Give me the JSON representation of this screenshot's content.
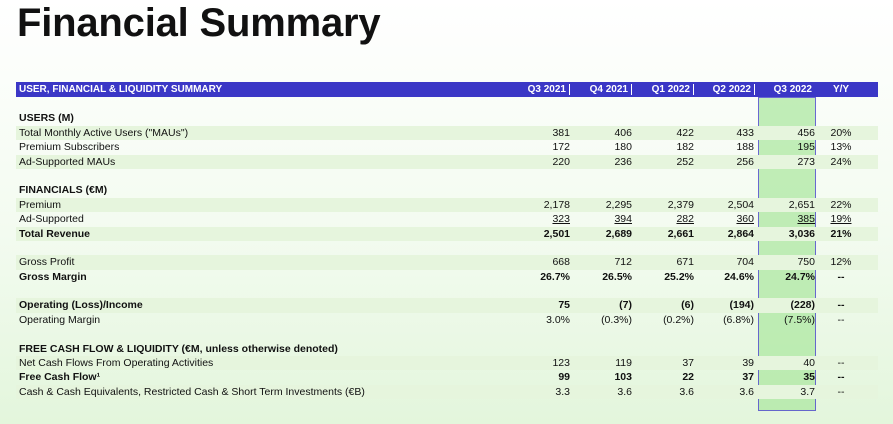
{
  "title": "Financial Summary",
  "table": {
    "header_label": "USER, FINANCIAL & LIQUIDITY SUMMARY",
    "columns": [
      "Q3 2021",
      "Q4 2021",
      "Q1 2022",
      "Q2 2022",
      "Q3 2022",
      "Y/Y"
    ]
  },
  "rows": [
    {
      "label": "USERS (M)"
    },
    {
      "label": "Total Monthly Active Users (\"MAUs\")",
      "values": [
        "381",
        "406",
        "422",
        "433",
        "456",
        "20%"
      ]
    },
    {
      "label": "Premium Subscribers",
      "values": [
        "172",
        "180",
        "182",
        "188",
        "195",
        "13%"
      ]
    },
    {
      "label": "Ad-Supported MAUs",
      "values": [
        "220",
        "236",
        "252",
        "256",
        "273",
        "24%"
      ]
    },
    {
      "label": "FINANCIALS (€M)"
    },
    {
      "label": "Premium",
      "values": [
        "2,178",
        "2,295",
        "2,379",
        "2,504",
        "2,651",
        "22%"
      ]
    },
    {
      "label": "Ad-Supported",
      "values": [
        "323",
        "394",
        "282",
        "360",
        "385",
        "19%"
      ]
    },
    {
      "label": "Total Revenue",
      "values": [
        "2,501",
        "2,689",
        "2,661",
        "2,864",
        "3,036",
        "21%"
      ]
    },
    {
      "label": "Gross Profit",
      "values": [
        "668",
        "712",
        "671",
        "704",
        "750",
        "12%"
      ]
    },
    {
      "label": "Gross Margin",
      "values": [
        "26.7%",
        "26.5%",
        "25.2%",
        "24.6%",
        "24.7%",
        "--"
      ]
    },
    {
      "label": "Operating (Loss)/Income",
      "values": [
        "75",
        "(7)",
        "(6)",
        "(194)",
        "(228)",
        "--"
      ]
    },
    {
      "label": "Operating Margin",
      "values": [
        "3.0%",
        "(0.3%)",
        "(0.2%)",
        "(6.8%)",
        "(7.5%)",
        "--"
      ]
    },
    {
      "label": "FREE CASH FLOW & LIQUIDITY (€M, unless otherwise denoted)"
    },
    {
      "label": "Net Cash Flows From Operating Activities",
      "values": [
        "123",
        "119",
        "37",
        "39",
        "40",
        "--"
      ]
    },
    {
      "label": "Free Cash Flow¹",
      "values": [
        "99",
        "103",
        "22",
        "37",
        "35",
        "--"
      ]
    },
    {
      "label": "Cash & Cash Equivalents, Restricted Cash & Short Term Investments (€B)",
      "values": [
        "3.3",
        "3.6",
        "3.6",
        "3.6",
        "3.7",
        "--"
      ]
    }
  ],
  "colors": {
    "header_bg": "#3b37c6",
    "highlight": "#aee8a2",
    "shade": "#e6f5dd"
  }
}
